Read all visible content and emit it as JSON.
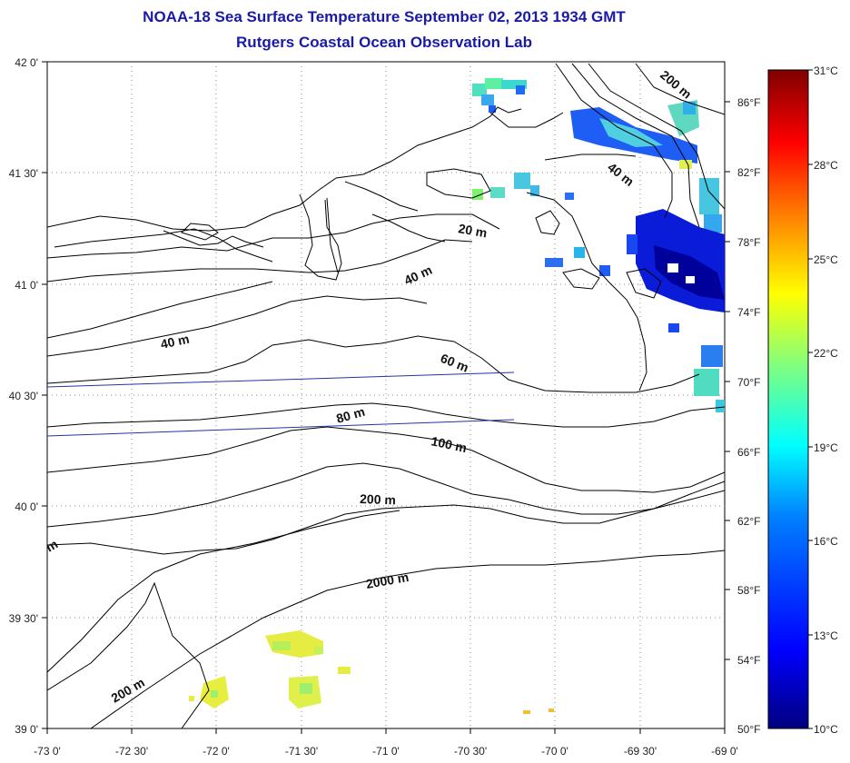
{
  "title": "NOAA-18 Sea Surface Temperature September 02, 2013 1934 GMT",
  "subtitle": "Rutgers Coastal Ocean Observation Lab",
  "lon_ticks": [
    "-73 0'",
    "-72 30'",
    "-72 0'",
    "-71 30'",
    "-71 0'",
    "-70 30'",
    "-70 0'",
    "-69 30'",
    "-69 0'"
  ],
  "lat_ticks": [
    "42 0'",
    "41 30'",
    "41 0'",
    "40 30'",
    "40 0'",
    "39 30'",
    "39 0'"
  ],
  "fahrenheit_ticks": [
    "86°F",
    "82°F",
    "78°F",
    "74°F",
    "70°F",
    "66°F",
    "62°F",
    "58°F",
    "54°F",
    "50°F"
  ],
  "celsius_ticks": [
    "31°C",
    "28°C",
    "25°C",
    "22°C",
    "19°C",
    "16°C",
    "13°C",
    "10°C"
  ],
  "contour_labels": [
    "20 m",
    "40 m",
    "40 m",
    "60 m",
    "80 m",
    "100 m",
    "200 m",
    "2000 m",
    "200 m",
    "200 m",
    "40 m",
    "m"
  ],
  "colors": {
    "title": "#1a1aa8",
    "contour": "#111111",
    "grid": "#888888",
    "track": "#2233aa"
  },
  "colorbar": {
    "min_c": 10,
    "max_c": 31,
    "stops": [
      "#00007f",
      "#0000ff",
      "#007fff",
      "#00ffff",
      "#7fff7f",
      "#ffff00",
      "#ff7f00",
      "#ff0000",
      "#7f0000"
    ]
  }
}
